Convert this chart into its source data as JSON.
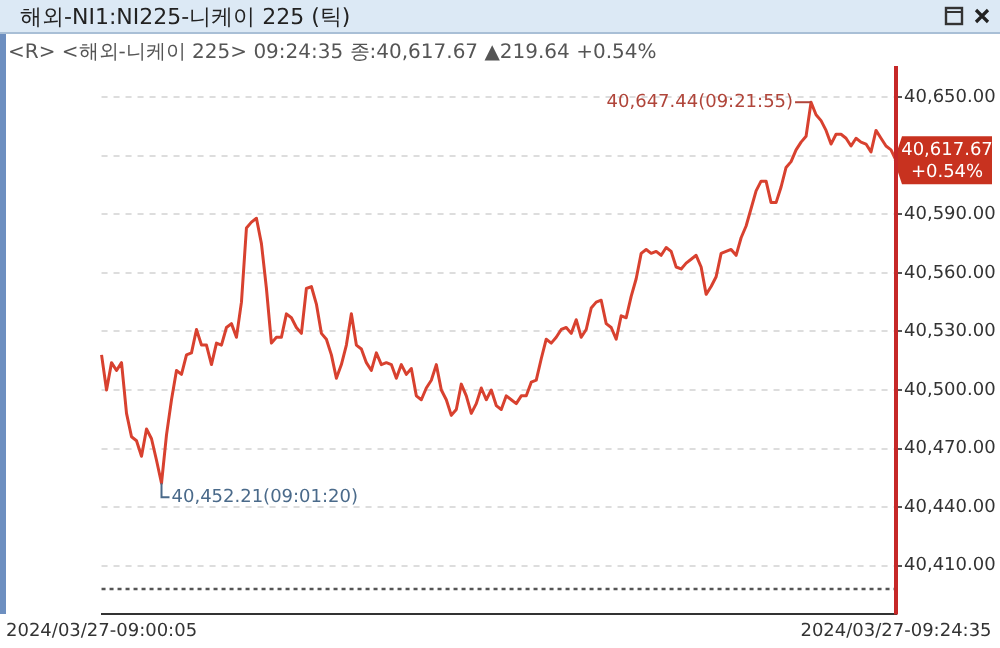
{
  "chart_data": {
    "type": "line",
    "title": "해외-NI1:NI225-니케이 225 (틱)",
    "subtitle": "<R> <해외-니케이 225> 09:24:35 종:40,617.67 ▲219.64 +0.54%",
    "categories": [
      "2024/03/27-09:00:05",
      null,
      null,
      null,
      null,
      null,
      null,
      null,
      null,
      null,
      null,
      null,
      null,
      null,
      null,
      null,
      null,
      null,
      null,
      null,
      null,
      null,
      null,
      null,
      null,
      null,
      null,
      null,
      null,
      null,
      null,
      null,
      null,
      null,
      null,
      null,
      null,
      null,
      null,
      null,
      null,
      null,
      null,
      null,
      null,
      null,
      null,
      null,
      null,
      null,
      null,
      null,
      null,
      null,
      null,
      null,
      null,
      null,
      null,
      null,
      null,
      null,
      null,
      null,
      null,
      null,
      null,
      null,
      null,
      null,
      null,
      null,
      null,
      null,
      null,
      null,
      null,
      null,
      null,
      null,
      null,
      null,
      null,
      null,
      null,
      null,
      null,
      null,
      null,
      null,
      null,
      null,
      null,
      null,
      null,
      null,
      null,
      null,
      null,
      null,
      null,
      null,
      null,
      null,
      null,
      null,
      null,
      null,
      null,
      null,
      null,
      null,
      null,
      null,
      null,
      null,
      null,
      null,
      null,
      null,
      null,
      null,
      null,
      null,
      null,
      null,
      null,
      null,
      null,
      null,
      null,
      null,
      null,
      null,
      null,
      null,
      null,
      null,
      null,
      null,
      null,
      null,
      null,
      null,
      null,
      null,
      null,
      null,
      null,
      null,
      null,
      null,
      null,
      null,
      null,
      null,
      null,
      null,
      null,
      "2024/03/27-09:24:35"
    ],
    "ylim": [
      40385,
      40666
    ],
    "yticks": [
      {
        "value": 40410,
        "label": "40,410.00"
      },
      {
        "value": 40440,
        "label": "40,440.00"
      },
      {
        "value": 40470,
        "label": "40,470.00"
      },
      {
        "value": 40500,
        "label": "40,500.00"
      },
      {
        "value": 40530,
        "label": "40,530.00"
      },
      {
        "value": 40560,
        "label": "40,560.00"
      },
      {
        "value": 40590,
        "label": "40,590.00"
      },
      {
        "value": 40620,
        "label": null
      },
      {
        "value": 40650,
        "label": "40,650.00"
      }
    ],
    "grid": "y",
    "legend": false,
    "marker": "none",
    "line_style": "solid",
    "ref_lines": [
      {
        "axis": "y",
        "value": 40398.03,
        "color": "#555555",
        "line_style": "dotted"
      }
    ],
    "annotations": [
      "40,647.44(09:21:55)",
      "40,452.21(09:01:20)",
      "40,617.67\n+0.54%"
    ],
    "series": [
      {
        "color": "#d8412f",
        "values": [
          40518,
          40500,
          40514,
          40510,
          40514,
          40488,
          40476,
          40474,
          40466,
          40480,
          40475,
          40464,
          40452.21,
          40477,
          40495,
          40510,
          40508,
          40518,
          40519,
          40531,
          40523,
          40523,
          40513,
          40524,
          40523,
          40532,
          40534,
          40527,
          40545,
          40583,
          40586,
          40588,
          40575,
          40552,
          40524,
          40527,
          40527,
          40539,
          40537,
          40532,
          40529,
          40552,
          40553,
          40544,
          40529,
          40526,
          40518,
          40506,
          40513,
          40523,
          40539,
          40523,
          40521,
          40514,
          40510,
          40519,
          40513,
          40514,
          40513,
          40506,
          40513,
          40508,
          40511,
          40497,
          40495,
          40501,
          40505,
          40513,
          40500,
          40495,
          40487,
          40490,
          40503,
          40497,
          40488,
          40493,
          40501,
          40495,
          40500,
          40492,
          40490,
          40497,
          40495,
          40493,
          40497,
          40497,
          40504,
          40505,
          40516,
          40526,
          40524,
          40527,
          40531,
          40532,
          40529,
          40536,
          40527,
          40531,
          40542,
          40545,
          40546,
          40534,
          40532,
          40526,
          40538,
          40537,
          40548,
          40557,
          40570,
          40572,
          40570,
          40571,
          40569,
          40573,
          40571,
          40563,
          40562,
          40565,
          40567,
          40569,
          40563,
          40549,
          40553,
          40558,
          40570,
          40571,
          40572,
          40569,
          40578,
          40584,
          40593,
          40602,
          40607,
          40607,
          40596,
          40596,
          40604,
          40614,
          40617,
          40623,
          40627,
          40630,
          40647.44,
          40641,
          40638,
          40633,
          40626,
          40631,
          40631,
          40629,
          40625,
          40629,
          40627,
          40626,
          40622,
          40633,
          40629,
          40625,
          40623,
          40617.67
        ]
      }
    ]
  }
}
